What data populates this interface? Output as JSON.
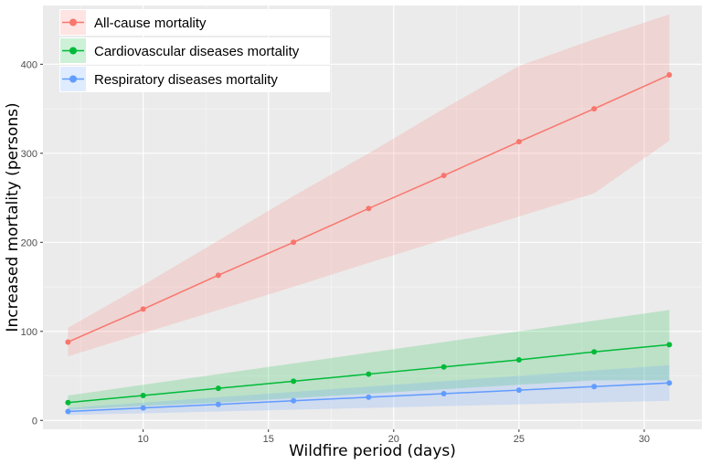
{
  "chart_data": {
    "type": "line",
    "xlabel": "Wildfire period (days)",
    "ylabel": "Increased mortality (persons)",
    "x": [
      7,
      10,
      13,
      16,
      19,
      22,
      25,
      28,
      31
    ],
    "xlim": [
      6,
      32.3
    ],
    "ylim": [
      -10,
      466
    ],
    "xticks": [
      10,
      15,
      20,
      25,
      30
    ],
    "yticks": [
      0,
      100,
      200,
      300,
      400
    ],
    "grid": true,
    "legend_position": "top-left",
    "series": [
      {
        "name": "All-cause mortality",
        "color": "#F8766D",
        "values": [
          88,
          125,
          163,
          200,
          238,
          275,
          313,
          350,
          388
        ],
        "lower": [
          72,
          98,
          124,
          150,
          177,
          203,
          229,
          255,
          314
        ],
        "upper": [
          104,
          152,
          202,
          252,
          300,
          350,
          398,
          428,
          456
        ]
      },
      {
        "name": "Cardiovascular diseases mortality",
        "color": "#00BA38",
        "values": [
          20,
          28,
          36,
          44,
          52,
          60,
          68,
          77,
          85
        ],
        "lower": [
          12,
          16,
          20,
          25,
          30,
          35,
          40,
          45,
          45
        ],
        "upper": [
          28,
          40,
          52,
          64,
          76,
          88,
          100,
          112,
          124
        ]
      },
      {
        "name": "Respiratory diseases mortality",
        "color": "#619CFF",
        "values": [
          10,
          14,
          18,
          22,
          26,
          30,
          34,
          38,
          42
        ],
        "lower": [
          6,
          8,
          10,
          12,
          14,
          16,
          18,
          20,
          22
        ],
        "upper": [
          14,
          20,
          26,
          32,
          38,
          44,
          50,
          56,
          62
        ]
      }
    ]
  }
}
